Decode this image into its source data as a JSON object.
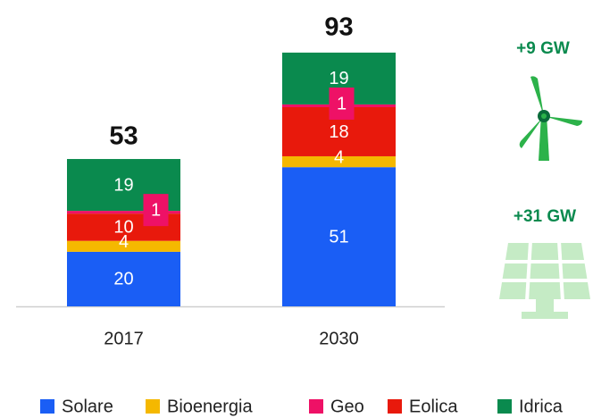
{
  "chart_data": {
    "type": "stacked_bar",
    "categories": [
      "2017",
      "2030"
    ],
    "series": [
      {
        "name": "Solare",
        "color": "#1a5ef5",
        "values": [
          20,
          51
        ]
      },
      {
        "name": "Bioenergia",
        "color": "#f5b800",
        "values": [
          4,
          4
        ]
      },
      {
        "name": "Geo",
        "color": "#ee1166",
        "values": [
          1,
          1
        ]
      },
      {
        "name": "Eolica",
        "color": "#e8190c",
        "values": [
          10,
          18
        ]
      },
      {
        "name": "Idrica",
        "color": "#0a8a4e",
        "values": [
          19,
          19
        ]
      }
    ],
    "totals": [
      53,
      93
    ],
    "annotations": [
      "+9 GW",
      "+31 GW"
    ]
  }
}
